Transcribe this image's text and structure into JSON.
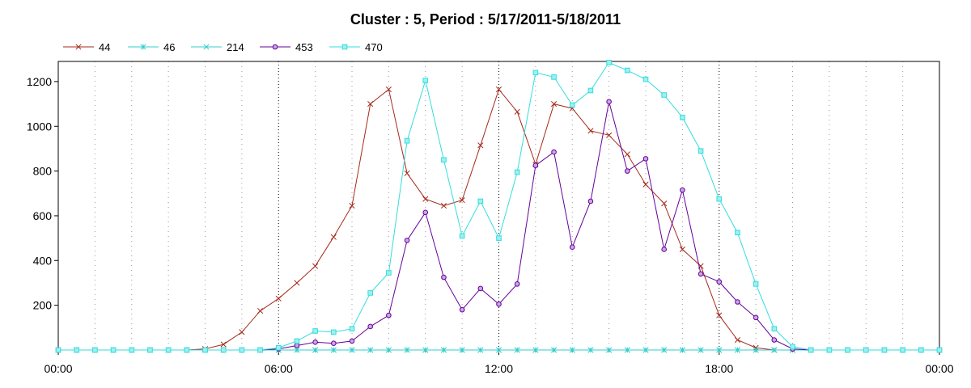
{
  "chart_data": {
    "type": "line",
    "title": "Cluster : 5, Period : 5/17/2011-5/18/2011",
    "xlabel": "",
    "ylabel": "",
    "x_ticks": [
      "00:00",
      "06:00",
      "12:00",
      "18:00",
      "00:00"
    ],
    "y_ticks": [
      200,
      400,
      600,
      800,
      1000,
      1200
    ],
    "xlim_hours": [
      0,
      24
    ],
    "ylim": [
      0,
      1290
    ],
    "grid": true,
    "legend_position": "top-left",
    "x_hours": [
      0,
      0.5,
      1,
      1.5,
      2,
      2.5,
      3,
      3.5,
      4,
      4.5,
      5,
      5.5,
      6,
      6.5,
      7,
      7.5,
      8,
      8.5,
      9,
      9.5,
      10,
      10.5,
      11,
      11.5,
      12,
      12.5,
      13,
      13.5,
      14,
      14.5,
      15,
      15.5,
      16,
      16.5,
      17,
      17.5,
      18,
      18.5,
      19,
      19.5,
      20,
      20.5,
      21,
      21.5,
      22,
      22.5,
      23,
      23.5,
      24
    ],
    "series": [
      {
        "name": "44",
        "color": "#a52a1a",
        "marker": "x",
        "values": [
          0,
          0,
          0,
          0,
          0,
          0,
          0,
          0,
          5,
          25,
          80,
          175,
          230,
          300,
          375,
          505,
          645,
          1100,
          1165,
          790,
          675,
          645,
          670,
          915,
          1165,
          1065,
          830,
          1100,
          1080,
          980,
          960,
          875,
          740,
          655,
          450,
          375,
          155,
          45,
          10,
          0,
          0,
          0,
          0,
          0,
          0,
          0,
          0,
          0,
          0
        ]
      },
      {
        "name": "46",
        "color": "#33cccc",
        "marker": "asterisk",
        "values": [
          0,
          0,
          0,
          0,
          0,
          0,
          0,
          0,
          0,
          0,
          0,
          0,
          0,
          0,
          0,
          0,
          0,
          0,
          0,
          0,
          0,
          0,
          0,
          0,
          0,
          0,
          0,
          0,
          0,
          0,
          0,
          0,
          0,
          0,
          0,
          0,
          0,
          0,
          0,
          0,
          0,
          0,
          0,
          0,
          0,
          0,
          0,
          0,
          0
        ]
      },
      {
        "name": "214",
        "color": "#33cccc",
        "marker": "x",
        "values": [
          0,
          0,
          0,
          0,
          0,
          0,
          0,
          0,
          0,
          0,
          0,
          0,
          0,
          0,
          0,
          0,
          0,
          0,
          0,
          0,
          0,
          0,
          0,
          0,
          0,
          0,
          0,
          0,
          0,
          0,
          0,
          0,
          0,
          0,
          0,
          0,
          0,
          0,
          0,
          0,
          0,
          0,
          0,
          0,
          0,
          0,
          0,
          0,
          0
        ]
      },
      {
        "name": "453",
        "color": "#660099",
        "marker": "circle",
        "values": [
          0,
          0,
          0,
          0,
          0,
          0,
          0,
          0,
          0,
          0,
          0,
          0,
          5,
          20,
          35,
          30,
          40,
          105,
          155,
          490,
          615,
          325,
          180,
          275,
          205,
          295,
          825,
          885,
          460,
          665,
          1110,
          800,
          855,
          450,
          715,
          340,
          305,
          215,
          145,
          45,
          5,
          0,
          0,
          0,
          0,
          0,
          0,
          0,
          0
        ]
      },
      {
        "name": "470",
        "color": "#33dddd",
        "marker": "square",
        "values": [
          0,
          0,
          0,
          0,
          0,
          0,
          0,
          0,
          0,
          0,
          0,
          0,
          10,
          40,
          85,
          80,
          95,
          255,
          345,
          935,
          1205,
          850,
          510,
          665,
          500,
          795,
          1240,
          1220,
          1095,
          1160,
          1285,
          1250,
          1210,
          1140,
          1040,
          890,
          675,
          525,
          295,
          95,
          15,
          0,
          0,
          0,
          0,
          0,
          0,
          0,
          0
        ]
      }
    ]
  }
}
